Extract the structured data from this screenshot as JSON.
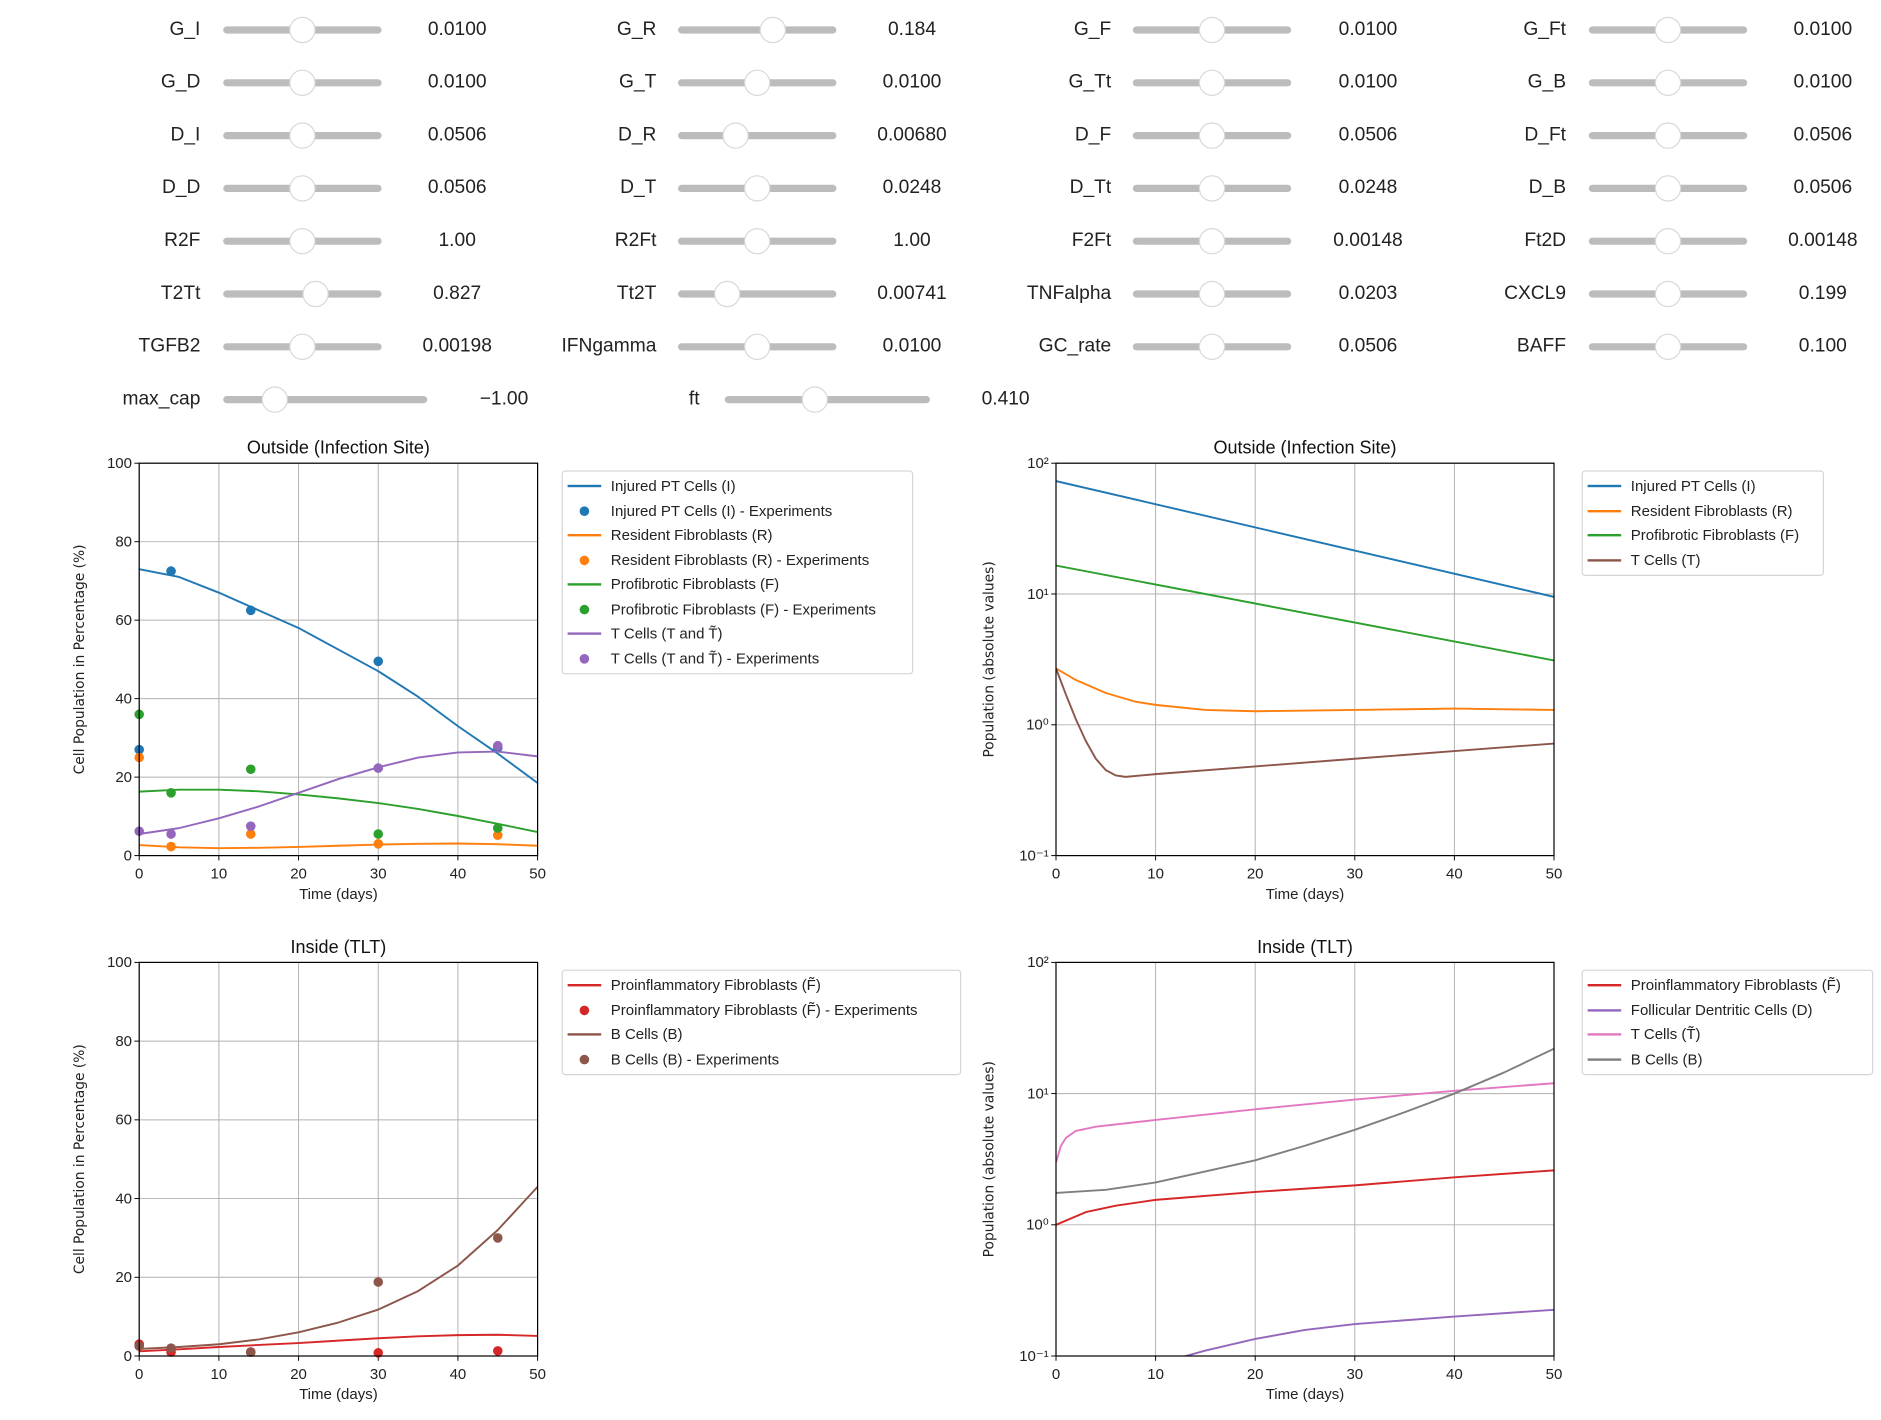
{
  "sliders": [
    [
      {
        "label": "G_I",
        "value": "0.0100",
        "position": 0.5
      },
      {
        "label": "G_D",
        "value": "0.0100",
        "position": 0.5
      },
      {
        "label": "D_I",
        "value": "0.0506",
        "position": 0.5
      },
      {
        "label": "D_D",
        "value": "0.0506",
        "position": 0.5
      },
      {
        "label": "R2F",
        "value": "1.00",
        "position": 0.5
      },
      {
        "label": "T2Tt",
        "value": "0.827",
        "position": 0.58
      },
      {
        "label": "TGFB2",
        "value": "0.00198",
        "position": 0.5
      }
    ],
    [
      {
        "label": "G_R",
        "value": "0.184",
        "position": 0.6
      },
      {
        "label": "G_T",
        "value": "0.0100",
        "position": 0.5
      },
      {
        "label": "D_R",
        "value": "0.00680",
        "position": 0.36
      },
      {
        "label": "D_T",
        "value": "0.0248",
        "position": 0.5
      },
      {
        "label": "R2Ft",
        "value": "1.00",
        "position": 0.5
      },
      {
        "label": "Tt2T",
        "value": "0.00741",
        "position": 0.31
      },
      {
        "label": "IFNgamma",
        "value": "0.0100",
        "position": 0.5
      }
    ],
    [
      {
        "label": "G_F",
        "value": "0.0100",
        "position": 0.5
      },
      {
        "label": "G_Tt",
        "value": "0.0100",
        "position": 0.5
      },
      {
        "label": "D_F",
        "value": "0.0506",
        "position": 0.5
      },
      {
        "label": "D_Tt",
        "value": "0.0248",
        "position": 0.5
      },
      {
        "label": "F2Ft",
        "value": "0.00148",
        "position": 0.5
      },
      {
        "label": "TNFalpha",
        "value": "0.0203",
        "position": 0.5
      },
      {
        "label": "GC_rate",
        "value": "0.0506",
        "position": 0.5
      }
    ],
    [
      {
        "label": "G_Ft",
        "value": "0.0100",
        "position": 0.5
      },
      {
        "label": "G_B",
        "value": "0.0100",
        "position": 0.5
      },
      {
        "label": "D_Ft",
        "value": "0.0506",
        "position": 0.5
      },
      {
        "label": "D_B",
        "value": "0.0506",
        "position": 0.5
      },
      {
        "label": "Ft2D",
        "value": "0.00148",
        "position": 0.5
      },
      {
        "label": "CXCL9",
        "value": "0.199",
        "position": 0.5
      },
      {
        "label": "BAFF",
        "value": "0.100",
        "position": 0.5
      }
    ]
  ],
  "wide_sliders": [
    {
      "label": "max_cap",
      "value": "−1.00",
      "position": 0.25
    },
    {
      "label": "ft",
      "value": "0.410",
      "position": 0.44
    }
  ],
  "chart_data": [
    {
      "type": "line",
      "title": "Outside (Infection Site)",
      "xlabel": "Time (days)",
      "ylabel": "Cell Population in Percentage (%)",
      "yscale": "linear",
      "xlim": [
        0,
        50
      ],
      "ylim": [
        0,
        100
      ],
      "xticks": [
        0,
        10,
        20,
        30,
        40,
        50
      ],
      "xtick_labels": [
        "0",
        "10",
        "20",
        "30",
        "40",
        "50"
      ],
      "yticks": [
        0,
        20,
        40,
        60,
        80,
        100
      ],
      "ytick_labels": [
        "0",
        "20",
        "40",
        "60",
        "80",
        "100"
      ],
      "grid": true,
      "legend_placement": "outside-right",
      "series": [
        {
          "name": "Injured PT Cells (I)",
          "kind": "line",
          "color": "#1f77b4",
          "x": [
            0,
            5,
            10,
            15,
            20,
            25,
            30,
            35,
            40,
            45,
            50
          ],
          "y": [
            73,
            71,
            67,
            62.5,
            58,
            52.5,
            47,
            40.5,
            33,
            26,
            18.5
          ]
        },
        {
          "name": "Injured PT Cells (I) - Experiments",
          "kind": "scatter",
          "color": "#1f77b4",
          "x": [
            0,
            4,
            14,
            30,
            45
          ],
          "y": [
            27,
            72.5,
            62.5,
            49.5,
            27.5
          ]
        },
        {
          "name": "Resident Fibroblasts (R)",
          "kind": "line",
          "color": "#ff7f0e",
          "x": [
            0,
            5,
            10,
            15,
            20,
            25,
            30,
            35,
            40,
            45,
            50
          ],
          "y": [
            2.7,
            2.1,
            1.9,
            2,
            2.2,
            2.5,
            2.8,
            3,
            3.1,
            2.9,
            2.5
          ]
        },
        {
          "name": "Resident Fibroblasts (R) - Experiments",
          "kind": "scatter",
          "color": "#ff7f0e",
          "x": [
            0,
            4,
            14,
            30,
            45
          ],
          "y": [
            25,
            2.3,
            5.5,
            3,
            5.2
          ]
        },
        {
          "name": "Profibrotic Fibroblasts (F)",
          "kind": "line",
          "color": "#2ca02c",
          "x": [
            0,
            5,
            10,
            15,
            20,
            25,
            30,
            35,
            40,
            45,
            50
          ],
          "y": [
            16.3,
            16.8,
            16.8,
            16.4,
            15.6,
            14.6,
            13.4,
            11.9,
            10.1,
            8.1,
            6
          ]
        },
        {
          "name": "Profibrotic Fibroblasts (F) - Experiments",
          "kind": "scatter",
          "color": "#2ca02c",
          "x": [
            0,
            4,
            14,
            30,
            45
          ],
          "y": [
            36,
            16,
            22,
            5.5,
            7
          ]
        },
        {
          "name": "T Cells (T and T̃)",
          "kind": "line",
          "color": "#9467bd",
          "x": [
            0,
            5,
            10,
            15,
            20,
            25,
            30,
            35,
            40,
            45,
            50
          ],
          "y": [
            5.5,
            7,
            9.5,
            12.5,
            16,
            19.5,
            22.5,
            25,
            26.3,
            26.5,
            25.3
          ]
        },
        {
          "name": "T Cells (T and T̃) - Experiments",
          "kind": "scatter",
          "color": "#9467bd",
          "x": [
            0,
            4,
            14,
            30,
            45
          ],
          "y": [
            6.2,
            5.5,
            7.5,
            22.3,
            28
          ]
        }
      ]
    },
    {
      "type": "line",
      "title": "Outside (Infection Site)",
      "xlabel": "Time (days)",
      "ylabel": "Population (absolute values)",
      "yscale": "log",
      "xlim": [
        0,
        50
      ],
      "ylim": [
        0.1,
        100
      ],
      "xticks": [
        0,
        10,
        20,
        30,
        40,
        50
      ],
      "xtick_labels": [
        "0",
        "10",
        "20",
        "30",
        "40",
        "50"
      ],
      "yticks": [
        0.1,
        1,
        10,
        100
      ],
      "ytick_labels": [
        "10⁻¹",
        "10⁰",
        "10¹",
        "10²"
      ],
      "grid": true,
      "legend_placement": "outside-right",
      "series": [
        {
          "name": "Injured PT Cells (I)",
          "kind": "line",
          "color": "#1f77b4",
          "x": [
            0,
            50
          ],
          "y": [
            73,
            9.5
          ]
        },
        {
          "name": "Resident Fibroblasts (R)",
          "kind": "line",
          "color": "#ff7f0e",
          "x": [
            0,
            2,
            5,
            8,
            10,
            15,
            20,
            30,
            40,
            50
          ],
          "y": [
            2.7,
            2.2,
            1.75,
            1.5,
            1.42,
            1.3,
            1.27,
            1.3,
            1.33,
            1.3
          ]
        },
        {
          "name": "Profibrotic Fibroblasts (F)",
          "kind": "line",
          "color": "#2ca02c",
          "x": [
            0,
            50
          ],
          "y": [
            16.5,
            3.1
          ]
        },
        {
          "name": "T Cells (T)",
          "kind": "line",
          "color": "#8c564b",
          "x": [
            0,
            1,
            2,
            3,
            4,
            5,
            6,
            7,
            10,
            20,
            30,
            40,
            50
          ],
          "y": [
            2.7,
            1.7,
            1.1,
            0.75,
            0.55,
            0.45,
            0.41,
            0.4,
            0.42,
            0.48,
            0.55,
            0.63,
            0.72
          ]
        }
      ]
    },
    {
      "type": "line",
      "title": "Inside (TLT)",
      "xlabel": "Time (days)",
      "ylabel": "Cell Population in Percentage (%)",
      "yscale": "linear",
      "xlim": [
        0,
        50
      ],
      "ylim": [
        0,
        100
      ],
      "xticks": [
        0,
        10,
        20,
        30,
        40,
        50
      ],
      "xtick_labels": [
        "0",
        "10",
        "20",
        "30",
        "40",
        "50"
      ],
      "yticks": [
        0,
        20,
        40,
        60,
        80,
        100
      ],
      "ytick_labels": [
        "0",
        "20",
        "40",
        "60",
        "80",
        "100"
      ],
      "grid": true,
      "legend_placement": "outside-right",
      "series": [
        {
          "name": "Proinflammatory Fibroblasts (F̃)",
          "kind": "line",
          "color": "#d62728",
          "x": [
            0,
            5,
            10,
            15,
            20,
            25,
            30,
            35,
            40,
            45,
            50
          ],
          "y": [
            1.2,
            1.7,
            2.3,
            2.8,
            3.3,
            3.9,
            4.5,
            5,
            5.3,
            5.4,
            5.1
          ]
        },
        {
          "name": "Proinflammatory Fibroblasts (F̃) - Experiments",
          "kind": "scatter",
          "color": "#d62728",
          "x": [
            0,
            4,
            14,
            30,
            45
          ],
          "y": [
            3,
            1,
            1,
            0.8,
            1.3
          ]
        },
        {
          "name": "B Cells (B)",
          "kind": "line",
          "color": "#8c564b",
          "x": [
            0,
            5,
            10,
            15,
            20,
            25,
            30,
            35,
            40,
            45,
            50
          ],
          "y": [
            1.8,
            2.3,
            3,
            4.2,
            6,
            8.5,
            11.8,
            16.5,
            23,
            32,
            43
          ]
        },
        {
          "name": "B Cells (B) - Experiments",
          "kind": "scatter",
          "color": "#8c564b",
          "x": [
            0,
            4,
            14,
            30,
            45
          ],
          "y": [
            2.5,
            2,
            1,
            18.8,
            30
          ]
        }
      ]
    },
    {
      "type": "line",
      "title": "Inside (TLT)",
      "xlabel": "Time (days)",
      "ylabel": "Population (absolute values)",
      "yscale": "log",
      "xlim": [
        0,
        50
      ],
      "ylim": [
        0.1,
        100
      ],
      "xticks": [
        0,
        10,
        20,
        30,
        40,
        50
      ],
      "xtick_labels": [
        "0",
        "10",
        "20",
        "30",
        "40",
        "50"
      ],
      "yticks": [
        0.1,
        1,
        10,
        100
      ],
      "ytick_labels": [
        "10⁻¹",
        "10⁰",
        "10¹",
        "10²"
      ],
      "grid": true,
      "legend_placement": "outside-right",
      "series": [
        {
          "name": "Proinflammatory Fibroblasts (F̃)",
          "kind": "line",
          "color": "#d62728",
          "x": [
            0,
            3,
            6,
            10,
            20,
            30,
            40,
            50
          ],
          "y": [
            1.0,
            1.25,
            1.4,
            1.55,
            1.78,
            2.0,
            2.3,
            2.6
          ]
        },
        {
          "name": "Follicular Dentritic Cells (D)",
          "kind": "line",
          "color": "#9467bd",
          "x": [
            12,
            15,
            20,
            25,
            30,
            40,
            50
          ],
          "y": [
            0.095,
            0.11,
            0.135,
            0.158,
            0.175,
            0.2,
            0.225
          ]
        },
        {
          "name": "T Cells (T̃)",
          "kind": "line",
          "color": "#e377c2",
          "x": [
            0,
            0.5,
            1,
            2,
            4,
            10,
            20,
            30,
            40,
            50
          ],
          "y": [
            3.0,
            4.0,
            4.6,
            5.2,
            5.6,
            6.3,
            7.6,
            9,
            10.5,
            12
          ]
        },
        {
          "name": "B Cells (B)",
          "kind": "line",
          "color": "#7f7f7f",
          "x": [
            0,
            5,
            10,
            15,
            20,
            25,
            30,
            35,
            40,
            45,
            50
          ],
          "y": [
            1.75,
            1.85,
            2.1,
            2.55,
            3.1,
            4,
            5.3,
            7.2,
            10,
            14.5,
            22
          ]
        }
      ]
    }
  ]
}
